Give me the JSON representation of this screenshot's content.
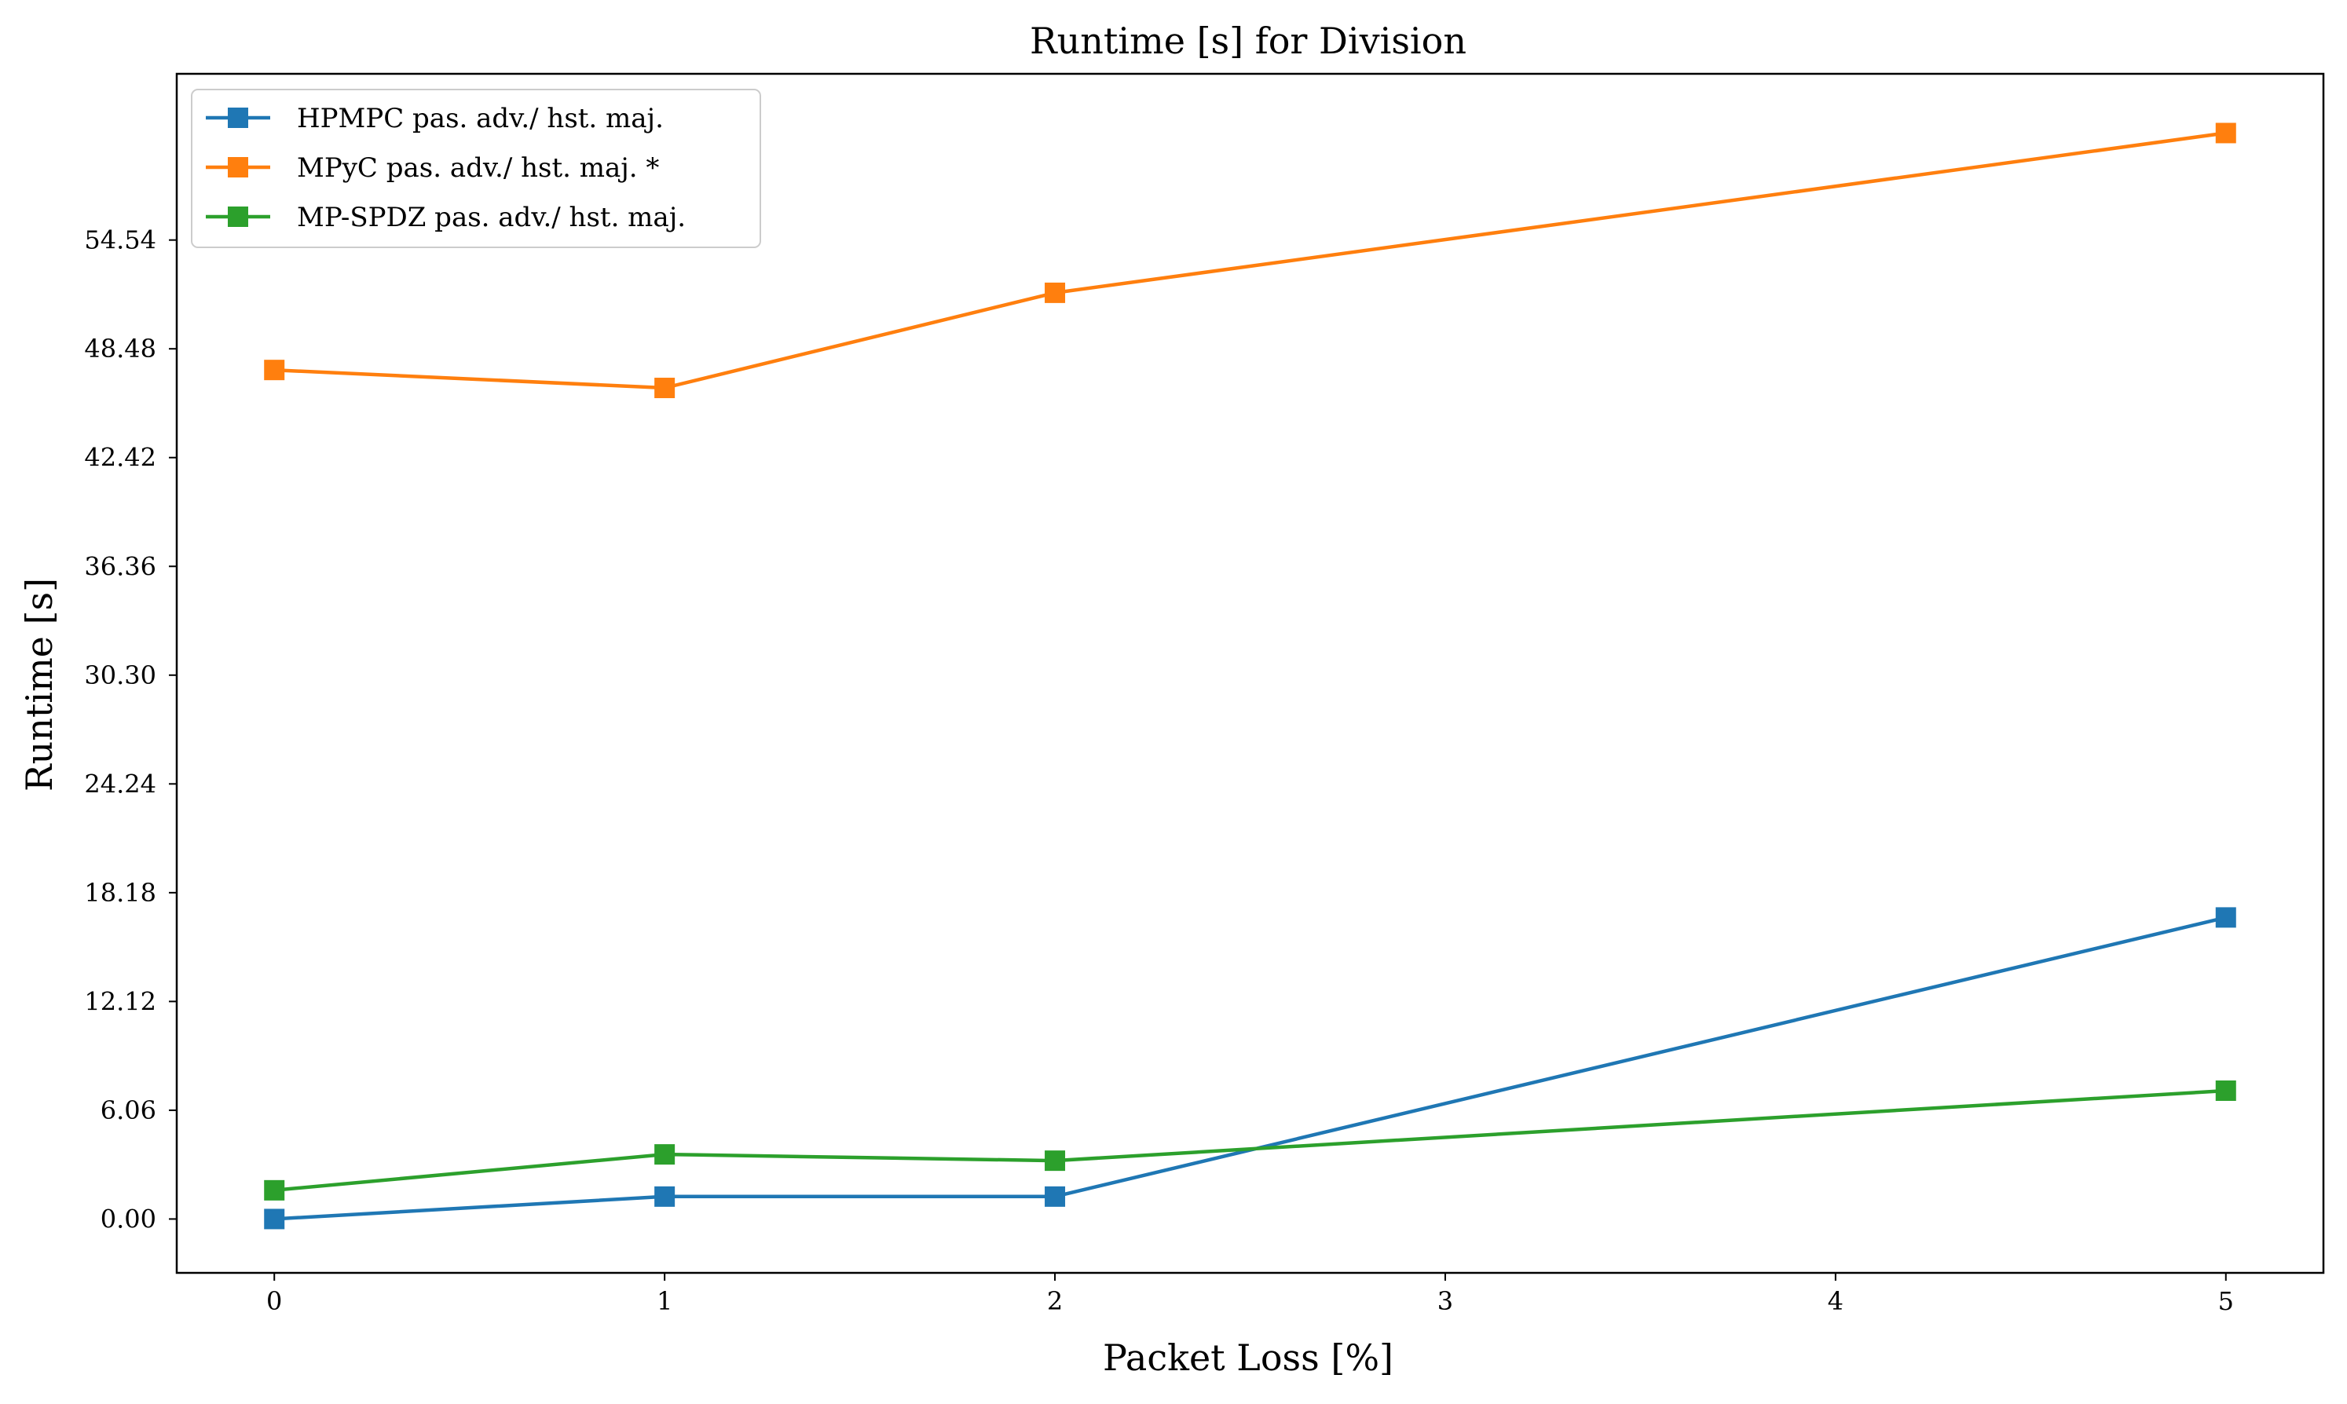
{
  "chart_data": {
    "type": "line",
    "title": "Runtime [s] for Division",
    "xlabel": "Packet Loss [%]",
    "ylabel": "Runtime [s]",
    "x_ticks": [
      "0",
      "1",
      "2",
      "3",
      "4",
      "5"
    ],
    "y_ticks": [
      "0.00",
      "6.06",
      "12.12",
      "18.18",
      "24.24",
      "30.30",
      "36.36",
      "42.42",
      "48.48",
      "54.54"
    ],
    "xlim": [
      -0.25,
      5.25
    ],
    "ylim": [
      -3.0,
      63.8
    ],
    "grid": false,
    "legend_position": "top-left",
    "series": [
      {
        "name": "HPMPC pas. adv./ hst. maj.",
        "color": "#1f77b4",
        "marker": "square",
        "x": [
          0,
          1,
          2,
          5
        ],
        "y": [
          0.0,
          1.25,
          1.25,
          16.8
        ]
      },
      {
        "name": "MPyC pas. adv./ hst. maj. *",
        "color": "#ff7f0e",
        "marker": "square",
        "x": [
          0,
          1,
          2,
          5
        ],
        "y": [
          47.3,
          46.3,
          51.6,
          60.5
        ]
      },
      {
        "name": "MP-SPDZ pas. adv./ hst. maj.",
        "color": "#2ca02c",
        "marker": "square",
        "x": [
          0,
          1,
          2,
          5
        ],
        "y": [
          1.6,
          3.6,
          3.25,
          7.15
        ]
      }
    ]
  }
}
